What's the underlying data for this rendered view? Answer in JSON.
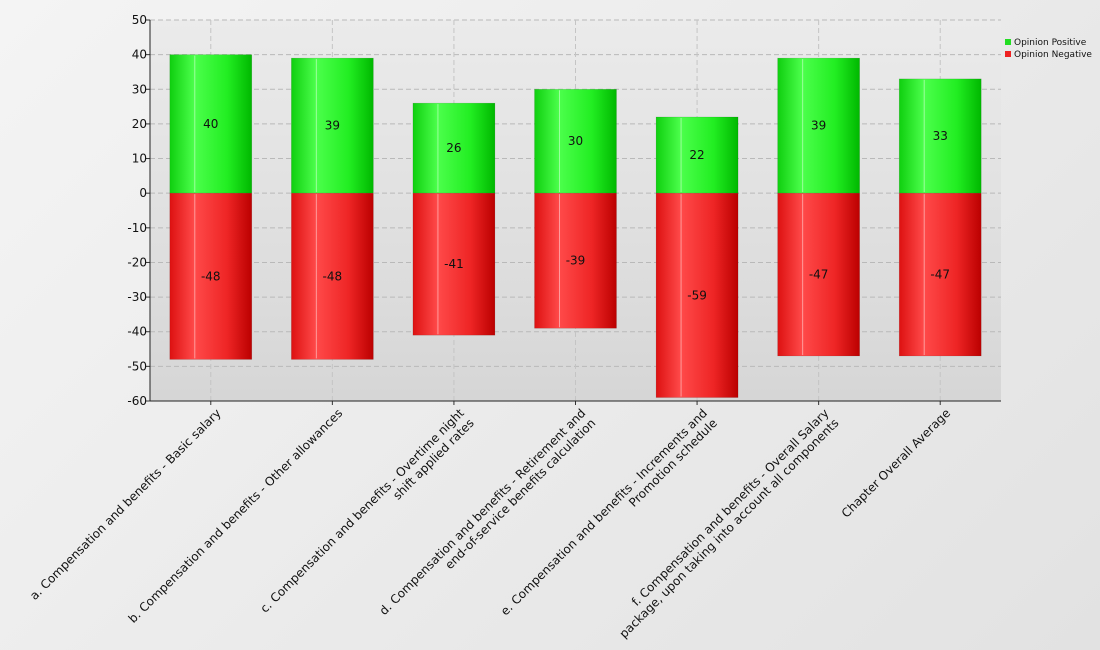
{
  "chart_data": {
    "type": "bar",
    "stacked": true,
    "categories": [
      [
        "a. Compensation and benefits - Basic salary"
      ],
      [
        "b. Compensation and benefits - Other allowances"
      ],
      [
        "c. Compensation and benefits - Overtime  night",
        "shift applied rates"
      ],
      [
        "d. Compensation and benefits - Retirement and",
        "end-of-service benefits calculation"
      ],
      [
        "e. Compensation and benefits - Increments and",
        "Promotion schedule"
      ],
      [
        "f. Compensation and benefits - Overall Salary",
        "package, upon taking into account all components"
      ],
      [
        "Chapter Overall Average"
      ]
    ],
    "series": [
      {
        "name": "Opinion Positive",
        "color": "#22dd22",
        "values": [
          40,
          39,
          26,
          30,
          22,
          39,
          33
        ]
      },
      {
        "name": "Opinion Negative",
        "color": "#ee2222",
        "values": [
          -48,
          -48,
          -41,
          -39,
          -59,
          -47,
          -47
        ]
      }
    ],
    "ylim": [
      -60,
      50
    ],
    "yticks": [
      50,
      40,
      30,
      20,
      10,
      0,
      -10,
      -20,
      -30,
      -40,
      -50,
      -60
    ],
    "grid": true,
    "legend_position": "top-right",
    "title": "",
    "xlabel": "",
    "ylabel": ""
  }
}
